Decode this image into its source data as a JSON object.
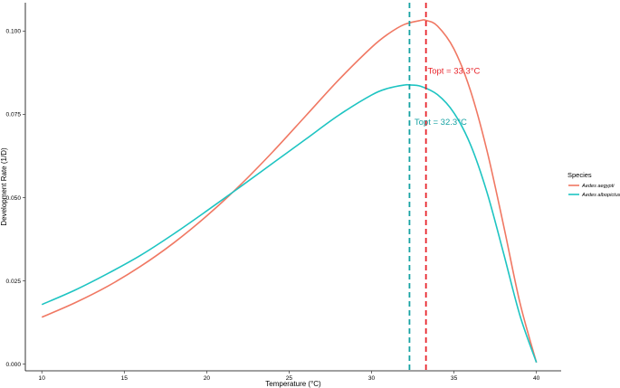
{
  "chart_data": {
    "type": "line",
    "title": "",
    "xlabel": "Temperature (°C)",
    "ylabel": "Development Rate (1/D)",
    "xlim": [
      9,
      41.5
    ],
    "ylim": [
      -0.002,
      0.1085
    ],
    "x_ticks": [
      10,
      15,
      20,
      25,
      30,
      35,
      40
    ],
    "x_tick_labels": [
      "10",
      "15",
      "20",
      "25",
      "30",
      "35",
      "40"
    ],
    "y_ticks": [
      0,
      0.025,
      0.05,
      0.075,
      0.1
    ],
    "y_tick_labels": [
      "0.000",
      "0.025",
      "0.050",
      "0.075",
      "0.100"
    ],
    "grid": false,
    "legend": {
      "title": "Species",
      "placement": "right"
    },
    "series": [
      {
        "name": "Aedes aegypti",
        "color": "#F07863",
        "x": [
          10,
          12,
          14,
          16,
          18,
          20,
          22,
          24,
          26,
          28,
          30,
          31,
          32,
          33,
          33.3,
          34,
          35,
          36,
          37,
          38,
          39,
          40
        ],
        "y": [
          0.0141,
          0.0184,
          0.0234,
          0.0294,
          0.0364,
          0.0445,
          0.0536,
          0.0637,
          0.0745,
          0.0853,
          0.0951,
          0.0991,
          0.102,
          0.1032,
          0.1032,
          0.1015,
          0.0946,
          0.0821,
          0.0641,
          0.0418,
          0.0184,
          0.0005
        ]
      },
      {
        "name": "Aedes albopictus",
        "color": "#1EC4C2",
        "x": [
          10,
          12,
          14,
          16,
          18,
          20,
          22,
          24,
          26,
          28,
          30,
          31,
          32,
          32.3,
          33,
          34,
          35,
          36,
          37,
          38,
          39,
          40
        ],
        "y": [
          0.0179,
          0.0222,
          0.0272,
          0.0327,
          0.0391,
          0.046,
          0.0531,
          0.0603,
          0.0675,
          0.0747,
          0.0808,
          0.0828,
          0.0838,
          0.0838,
          0.0834,
          0.0809,
          0.0754,
          0.0659,
          0.0516,
          0.0334,
          0.0146,
          0.0005
        ]
      }
    ],
    "vlines": [
      {
        "x": 33.3,
        "color": "#E8242B",
        "style": "dashed"
      },
      {
        "x": 32.3,
        "color": "#17A2A3",
        "style": "dashed"
      }
    ],
    "annotations": [
      {
        "text": "Topt = 33.3°C",
        "x": 33.4,
        "y": 0.0872,
        "color": "#E8242B"
      },
      {
        "text": "Topt = 32.3°C",
        "x": 32.6,
        "y": 0.0718,
        "color": "#17A2A3"
      }
    ]
  }
}
